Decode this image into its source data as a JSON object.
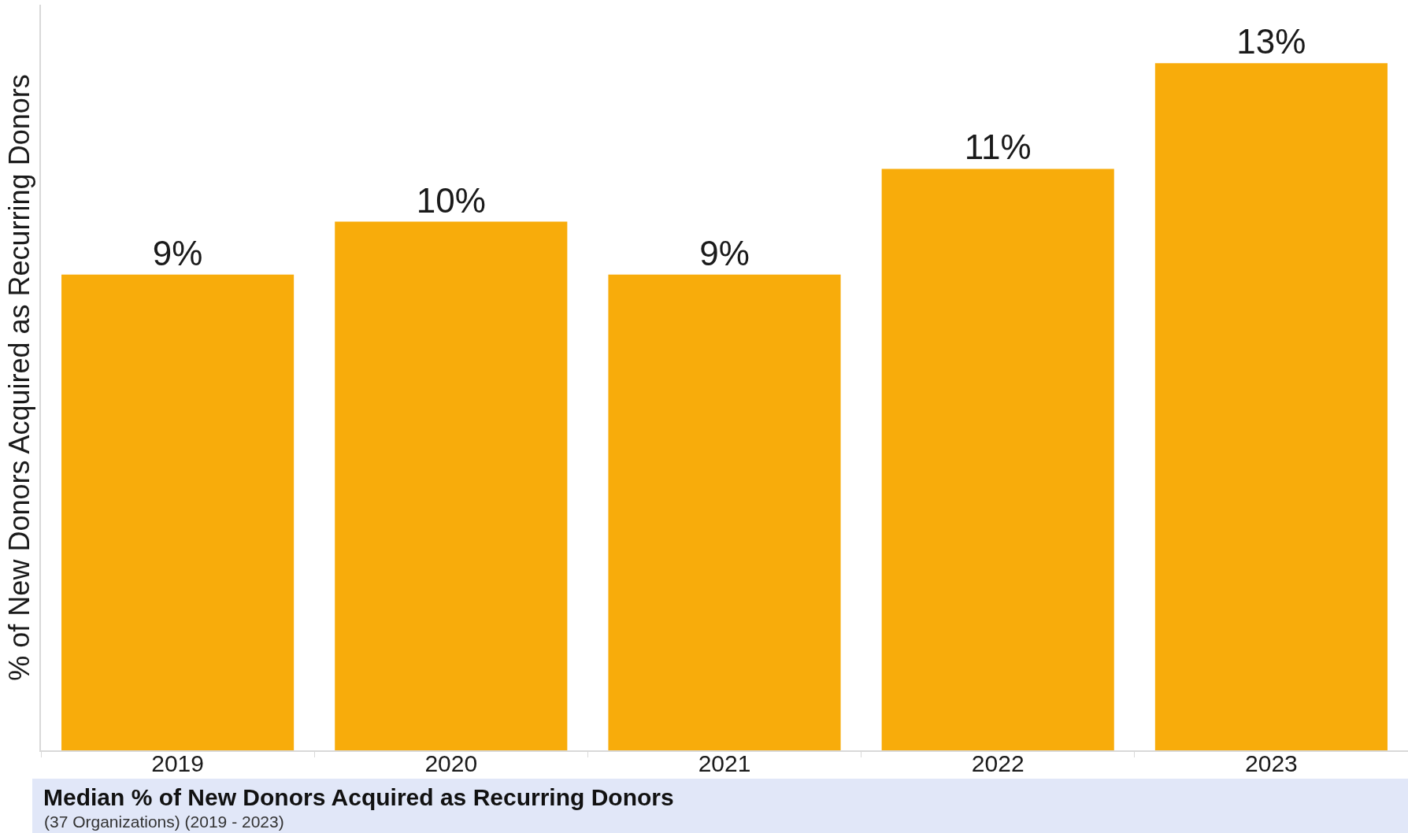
{
  "chart_data": {
    "type": "bar",
    "title": "Median % of New Donors Acquired as Recurring Donors",
    "subtitle": "(37 Organizations) (2019 - 2023)",
    "ylabel": "% of New Donors Acquired as Recurring Donors",
    "categories": [
      "2019",
      "2020",
      "2021",
      "2022",
      "2023"
    ],
    "values": [
      9,
      10,
      9,
      11,
      13
    ],
    "value_labels": [
      "9%",
      "10%",
      "9%",
      "11%",
      "13%"
    ],
    "color": "#f8ac0b",
    "tick_labels": "x"
  }
}
